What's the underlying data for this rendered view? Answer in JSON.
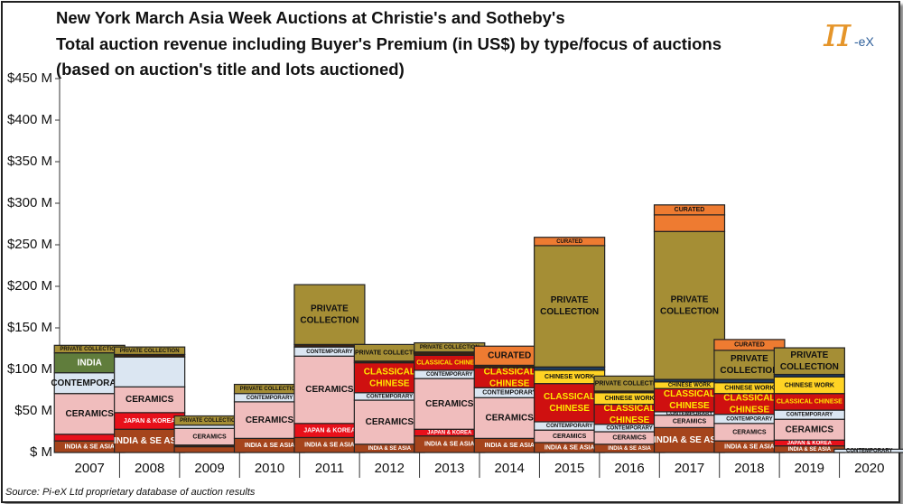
{
  "title_lines": [
    "New York March Asia Week Auctions at Christie's and Sotheby's",
    "Total auction revenue including Buyer's Premium (in US$) by type/focus of auctions",
    "(based on auction's title and lots auctioned)"
  ],
  "logo": {
    "pi": "π",
    "suffix": "-eX"
  },
  "source": "Source:  Pi-eX Ltd proprietary database of auction results",
  "colors": {
    "INDIA & SE ASIA": "#a5441c",
    "JAPAN & KOREA": "#e8101a",
    "CERAMICS": "#f0bdbd",
    "CONTEMPORARY": "#dbe6f2",
    "PRIVATE COLLECTION": "#a58e35",
    "INDIA": "#607d3c",
    "CLASSICAL CHINESE": "#cf1010",
    "CHINESE WORK": "#ffd324",
    "CURATED": "#ee7b31",
    "dark": "#3a2210",
    "navy": "#1f3b5c"
  },
  "chart_data": {
    "type": "bar",
    "stacked": true,
    "title": "New York March Asia Week Auctions at Christie's and Sotheby's",
    "ylabel": "Total auction revenue including Buyer's Premium (US$)",
    "ylim": [
      0,
      450
    ],
    "yticks": [
      0,
      50,
      100,
      150,
      200,
      250,
      300,
      350,
      400,
      450
    ],
    "ytick_labels": [
      "$ M",
      "$50 M",
      "$100 M",
      "$150 M",
      "$200 M",
      "$250 M",
      "$300 M",
      "$350 M",
      "$400 M",
      "$450 M"
    ],
    "categories": [
      "2007",
      "2008",
      "2009",
      "2010",
      "2011",
      "2012",
      "2013",
      "2014",
      "2015",
      "2016",
      "2017",
      "2018",
      "2019",
      "2020"
    ],
    "stacks": [
      [
        {
          "label": "INDIA & SE ASIA",
          "value": 14
        },
        {
          "label": "JAPAN & KOREA",
          "value": 8
        },
        {
          "label": "CERAMICS",
          "value": 49
        },
        {
          "label": "CONTEMPORARY",
          "value": 25
        },
        {
          "label": "INDIA",
          "value": 24
        },
        {
          "label": "PRIVATE COLLECTION",
          "value": 9
        }
      ],
      [
        {
          "label": "INDIA & SE ASIA",
          "value": 28
        },
        {
          "label": "JAPAN & KOREA",
          "value": 20
        },
        {
          "label": "CERAMICS",
          "value": 31
        },
        {
          "label": "CONTEMPORARY",
          "value": 36
        },
        {
          "label": "dark",
          "value": 3
        },
        {
          "label": "PRIVATE COLLECTION",
          "value": 9
        }
      ],
      [
        {
          "label": "INDIA & SE ASIA",
          "value": 7
        },
        {
          "label": "dark",
          "value": 2
        },
        {
          "label": "CERAMICS",
          "value": 20
        },
        {
          "label": "CONTEMPORARY",
          "value": 4
        },
        {
          "label": "PRIVATE COLLECTION",
          "value": 11
        }
      ],
      [
        {
          "label": "INDIA & SE ASIA",
          "value": 17
        },
        {
          "label": "CERAMICS",
          "value": 44
        },
        {
          "label": "CONTEMPORARY",
          "value": 10
        },
        {
          "label": "PRIVATE COLLECTION",
          "value": 11
        }
      ],
      [
        {
          "label": "INDIA & SE ASIA",
          "value": 18
        },
        {
          "label": "JAPAN & KOREA",
          "value": 17
        },
        {
          "label": "CERAMICS",
          "value": 81
        },
        {
          "label": "CONTEMPORARY",
          "value": 11
        },
        {
          "label": "dark",
          "value": 3
        },
        {
          "label": "PRIVATE COLLECTION",
          "value": 72
        }
      ],
      [
        {
          "label": "INDIA & SE ASIA",
          "value": 10
        },
        {
          "label": "CERAMICS",
          "value": 53
        },
        {
          "label": "CONTEMPORARY",
          "value": 9
        },
        {
          "label": "CLASSICAL CHINESE",
          "value": 36
        },
        {
          "label": "dark",
          "value": 2
        },
        {
          "label": "PRIVATE COLLECTION",
          "value": 20
        }
      ],
      [
        {
          "label": "INDIA & SE ASIA",
          "value": 20
        },
        {
          "label": "JAPAN & KOREA",
          "value": 8
        },
        {
          "label": "CERAMICS",
          "value": 61
        },
        {
          "label": "CONTEMPORARY",
          "value": 10
        },
        {
          "label": "CLASSICAL CHINESE",
          "value": 18
        },
        {
          "label": "dark",
          "value": 4
        },
        {
          "label": "PRIVATE COLLECTION",
          "value": 11
        }
      ],
      [
        {
          "label": "INDIA & SE ASIA",
          "value": 17
        },
        {
          "label": "CERAMICS",
          "value": 49
        },
        {
          "label": "CONTEMPORARY",
          "value": 12
        },
        {
          "label": "CLASSICAL CHINESE",
          "value": 24
        },
        {
          "label": "dark",
          "value": 3
        },
        {
          "label": "CURATED",
          "value": 23
        }
      ],
      [
        {
          "label": "INDIA & SE ASIA",
          "value": 12
        },
        {
          "label": "CERAMICS",
          "value": 15
        },
        {
          "label": "CONTEMPORARY",
          "value": 10
        },
        {
          "label": "CLASSICAL CHINESE",
          "value": 46
        },
        {
          "label": "CHINESE WORK",
          "value": 16
        },
        {
          "label": "navy",
          "value": 4
        },
        {
          "label": "PRIVATE COLLECTION",
          "value": 146
        },
        {
          "label": "CURATED",
          "value": 10
        }
      ],
      [
        {
          "label": "INDIA & SE ASIA",
          "value": 10
        },
        {
          "label": "CERAMICS",
          "value": 15
        },
        {
          "label": "CONTEMPORARY",
          "value": 9
        },
        {
          "label": "CLASSICAL CHINESE",
          "value": 24
        },
        {
          "label": "CHINESE WORK",
          "value": 14
        },
        {
          "label": "dark",
          "value": 2
        },
        {
          "label": "PRIVATE COLLECTION",
          "value": 18
        }
      ],
      [
        {
          "label": "INDIA & SE ASIA",
          "value": 30
        },
        {
          "label": "CERAMICS",
          "value": 15
        },
        {
          "label": "CONTEMPORARY",
          "value": 4
        },
        {
          "label": "CLASSICAL CHINESE",
          "value": 28
        },
        {
          "label": "CHINESE WORK",
          "value": 8
        },
        {
          "label": "navy",
          "value": 3
        },
        {
          "label": "PRIVATE COLLECTION",
          "value": 178
        },
        {
          "label": "CURATED",
          "value": 20
        },
        {
          "label": "CURATED",
          "value": 12
        }
      ],
      [
        {
          "label": "INDIA & SE ASIA",
          "value": 14
        },
        {
          "label": "CERAMICS",
          "value": 21
        },
        {
          "label": "CONTEMPORARY",
          "value": 11
        },
        {
          "label": "CLASSICAL CHINESE",
          "value": 25
        },
        {
          "label": "CHINESE WORK",
          "value": 13
        },
        {
          "label": "navy",
          "value": 4
        },
        {
          "label": "PRIVATE COLLECTION",
          "value": 35
        },
        {
          "label": "CURATED",
          "value": 13
        }
      ],
      [
        {
          "label": "INDIA & SE ASIA",
          "value": 8
        },
        {
          "label": "JAPAN & KOREA",
          "value": 7
        },
        {
          "label": "CERAMICS",
          "value": 25
        },
        {
          "label": "CONTEMPORARY",
          "value": 11
        },
        {
          "label": "CLASSICAL CHINESE",
          "value": 20
        },
        {
          "label": "CHINESE WORK",
          "value": 20
        },
        {
          "label": "navy",
          "value": 3
        },
        {
          "label": "PRIVATE COLLECTION",
          "value": 32
        }
      ],
      [
        {
          "label": "CONTEMPORARY",
          "value": 4
        }
      ]
    ],
    "segment_labels": {
      "2007": [
        "INDIA & SE ASIA",
        "",
        "CERAMICS",
        "CONTEMPORARY",
        "INDIA",
        "PRIVATE COLLECTION"
      ],
      "2008": [
        "INDIA & SE ASIA",
        "JAPAN & KOREA",
        "CERAMICS",
        "",
        "",
        "PRIVATE COLLECTION"
      ],
      "2009": [
        "",
        "",
        "CERAMICS",
        "",
        "PRIVATE COLLECTION"
      ],
      "2010": [
        "INDIA & SE ASIA",
        "CERAMICS",
        "CONTEMPORARY",
        "PRIVATE COLLECTION"
      ],
      "2011": [
        "INDIA & SE ASIA",
        "JAPAN & KOREA",
        "CERAMICS",
        "CONTEMPORARY",
        "",
        "PRIVATE COLLECTION"
      ],
      "2012": [
        "INDIA & SE ASIA",
        "CERAMICS",
        "CONTEMPORARY",
        "CLASSICAL CHINESE",
        "",
        "PRIVATE COLLECTION"
      ],
      "2013": [
        "INDIA & SE ASIA",
        "JAPAN & KOREA",
        "CERAMICS",
        "CONTEMPORARY",
        "CLASSICAL CHINESE",
        "",
        "PRIVATE COLLECTION"
      ],
      "2014": [
        "INDIA & SE ASIA",
        "CERAMICS",
        "CONTEMPORARY",
        "CLASSICAL CHINESE",
        "",
        "CURATED"
      ],
      "2015": [
        "INDIA & SE ASIA",
        "CERAMICS",
        "CONTEMPORARY",
        "CLASSICAL CHINESE",
        "CHINESE WORK",
        "",
        "PRIVATE COLLECTION",
        "CURATED"
      ],
      "2016": [
        "INDIA & SE ASIA",
        "CERAMICS",
        "CONTEMPORARY",
        "CLASSICAL CHINESE",
        "CHINESE WORK",
        "",
        "PRIVATE COLLECTION"
      ],
      "2017": [
        "INDIA & SE ASIA",
        "CERAMICS",
        "CONTEMPORARY",
        "CLASSICAL CHINESE",
        "CHINESE WORK",
        "",
        "PRIVATE COLLECTION",
        "",
        "CURATED"
      ],
      "2018": [
        "INDIA & SE ASIA",
        "CERAMICS",
        "CONTEMPORARY",
        "CLASSICAL CHINESE",
        "CHINESE WORK",
        "",
        "PRIVATE COLLECTION",
        "CURATED"
      ],
      "2019": [
        "INDIA & SE ASIA",
        "JAPAN & KOREA",
        "CERAMICS",
        "CONTEMPORARY",
        "CLASSICAL CHINESE",
        "CHINESE WORK",
        "",
        "PRIVATE COLLECTION"
      ],
      "2020": [
        "CONTEMPORARY"
      ]
    },
    "legend": "none (labels inside bar segments)",
    "grid": false
  }
}
